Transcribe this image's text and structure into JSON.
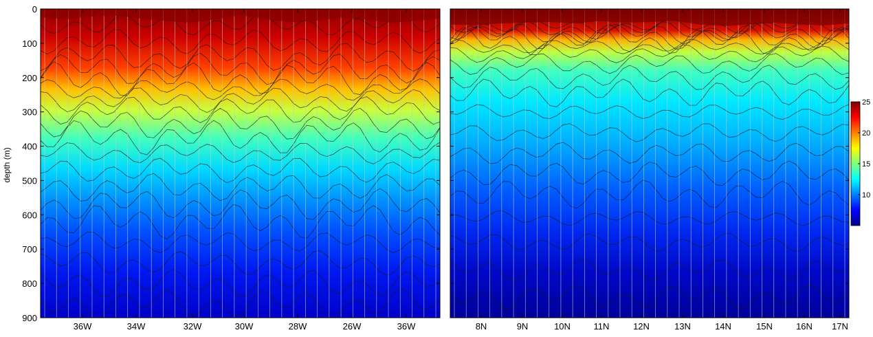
{
  "figure": {
    "y_label": "depth (m)",
    "colorbar": {
      "ticks": [
        "25",
        "20",
        "15",
        "10"
      ],
      "values": [
        25,
        20,
        15,
        10
      ],
      "range": [
        5,
        25
      ],
      "colormap": [
        "#00008f",
        "#0000ff",
        "#007fff",
        "#00ffff",
        "#7fff7f",
        "#ffff00",
        "#ff7f00",
        "#ff0000",
        "#7f0000"
      ]
    }
  },
  "chart_data": [
    {
      "type": "heatmap",
      "title": "",
      "xlabel": "",
      "ylabel": "depth (m)",
      "ylim": [
        0,
        900
      ],
      "y_ticks": [
        0,
        100,
        200,
        300,
        400,
        500,
        600,
        700,
        800,
        900
      ],
      "x_ticks": [
        "36W",
        "34W",
        "32W",
        "30W",
        "28W",
        "26W",
        "36W"
      ],
      "variable_range": [
        5,
        25
      ],
      "contour_depths": [
        45,
        95,
        140,
        175,
        205,
        235,
        265,
        295,
        335,
        375,
        420,
        470,
        520,
        570,
        620,
        680,
        740,
        800,
        860
      ],
      "mixed_layer_depth": [
        25,
        30,
        22,
        20,
        28,
        35,
        40,
        30,
        18,
        30,
        38,
        35,
        25,
        30,
        40,
        35,
        28
      ]
    },
    {
      "type": "heatmap",
      "title": "",
      "xlabel": "",
      "ylabel": "",
      "ylim": [
        0,
        900
      ],
      "y_ticks": [
        0,
        100,
        200,
        300,
        400,
        500,
        600,
        700,
        800,
        900
      ],
      "x_ticks": [
        "8N",
        "9N",
        "10N",
        "11N",
        "12N",
        "13N",
        "14N",
        "15N",
        "16N",
        "17N"
      ],
      "variable_range": [
        5,
        25
      ],
      "contour_depths": [
        50,
        62,
        72,
        82,
        95,
        110,
        130,
        160,
        200,
        245,
        300,
        360,
        420,
        480,
        540,
        610,
        680,
        760,
        840
      ],
      "mixed_layer_depth": [
        45,
        48,
        42,
        40,
        38,
        42,
        35,
        40,
        38,
        35,
        45,
        50,
        45,
        40,
        45,
        48,
        42
      ]
    }
  ]
}
